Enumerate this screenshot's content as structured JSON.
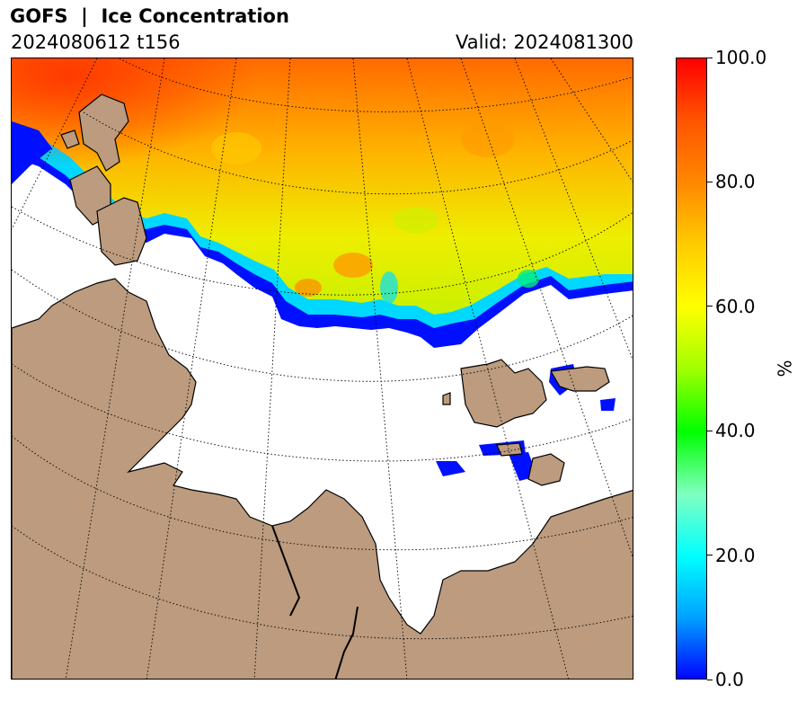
{
  "header": {
    "title": "GOFS  |  Ice Concentration",
    "run": "2024080612 t156",
    "valid": "Valid: 2024081300"
  },
  "colorbar": {
    "unit": "%",
    "min": 0,
    "max": 100,
    "ticks": [
      "0.0",
      "20.0",
      "40.0",
      "60.0",
      "80.0",
      "100.0"
    ],
    "tick_values": [
      0,
      20,
      40,
      60,
      80,
      100
    ],
    "colormap": [
      "#0000ff",
      "#00ffff",
      "#00ff00",
      "#ffff00",
      "#ff8000",
      "#ff0000"
    ]
  },
  "map": {
    "land_color": "#bc9b7e",
    "ocean_color": "#ffffff",
    "ice_colors": {
      "low": "#0000ff",
      "mid_low": "#00ffff",
      "mid": "#aaff00",
      "high": "#ffff00",
      "very_high": "#ff9900",
      "max": "#ff3300"
    }
  }
}
